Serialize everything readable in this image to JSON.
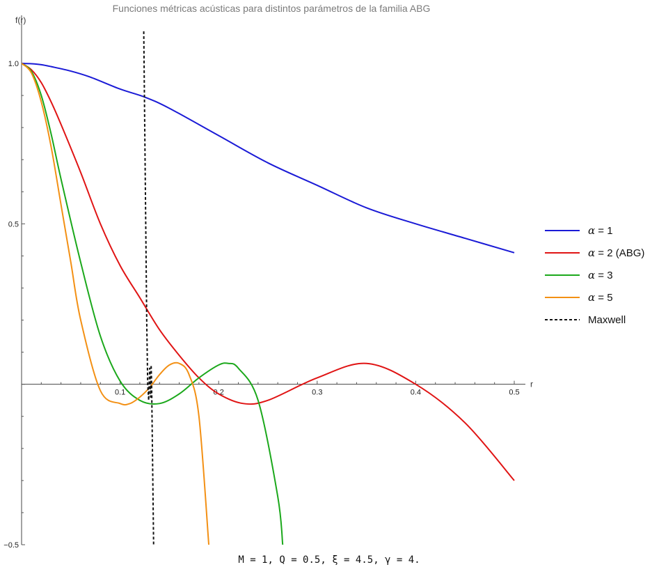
{
  "chart_data": {
    "type": "line",
    "title": "Funciones métricas acústicas para distintos parámetros de la familia ABG",
    "xlabel": "r",
    "ylabel": "f(r)",
    "xlim": [
      0,
      0.5
    ],
    "ylim": [
      -0.5,
      1.0
    ],
    "x_ticks": [
      "0.1",
      "0.2",
      "0.3",
      "0.4",
      "0.5"
    ],
    "y_ticks": [
      "1.0",
      "0.5",
      "-0.5"
    ],
    "grid": false,
    "legend_position": "right",
    "annotation": "M = 1, Q = 0.5, ξ = 4.5, γ = 4.",
    "series": [
      {
        "name": "α = 1",
        "greek": "α",
        "label_rest": " = 1",
        "color": "#1a1ad6",
        "dash": false,
        "x": [
          0,
          0.01,
          0.02,
          0.03,
          0.05,
          0.07,
          0.1,
          0.125,
          0.15,
          0.2,
          0.25,
          0.3,
          0.35,
          0.4,
          0.45,
          0.5
        ],
        "y": [
          1.0,
          0.999,
          0.996,
          0.99,
          0.976,
          0.957,
          0.92,
          0.895,
          0.86,
          0.775,
          0.69,
          0.62,
          0.55,
          0.5,
          0.455,
          0.41
        ]
      },
      {
        "name": "α = 2 (ABG)",
        "greek": "α",
        "label_rest": " = 2 (ABG)",
        "color": "#e01414",
        "dash": false,
        "x": [
          0,
          0.01,
          0.02,
          0.03,
          0.04,
          0.06,
          0.08,
          0.1,
          0.12,
          0.14,
          0.16,
          0.18,
          0.2,
          0.225,
          0.25,
          0.3,
          0.35,
          0.4,
          0.45,
          0.5
        ],
        "y": [
          1.0,
          0.98,
          0.94,
          0.88,
          0.81,
          0.66,
          0.5,
          0.37,
          0.27,
          0.17,
          0.09,
          0.02,
          -0.03,
          -0.06,
          -0.05,
          0.02,
          0.065,
          0.0,
          -0.12,
          -0.3
        ]
      },
      {
        "name": "α = 3",
        "greek": "α",
        "label_rest": " = 3",
        "color": "#1ba81b",
        "dash": false,
        "x": [
          0,
          0.01,
          0.02,
          0.03,
          0.04,
          0.06,
          0.08,
          0.1,
          0.12,
          0.14,
          0.16,
          0.18,
          0.2,
          0.21,
          0.22,
          0.24,
          0.26,
          0.265
        ],
        "y": [
          1.0,
          0.975,
          0.9,
          0.78,
          0.64,
          0.38,
          0.15,
          0.01,
          -0.05,
          -0.06,
          -0.03,
          0.02,
          0.06,
          0.065,
          0.05,
          -0.05,
          -0.35,
          -0.5
        ]
      },
      {
        "name": "α = 5",
        "greek": "α",
        "label_rest": " = 5",
        "color": "#f39014",
        "dash": false,
        "x": [
          0,
          0.01,
          0.02,
          0.03,
          0.04,
          0.05,
          0.06,
          0.08,
          0.1,
          0.11,
          0.12,
          0.13,
          0.14,
          0.15,
          0.16,
          0.17,
          0.18,
          0.19
        ],
        "y": [
          1.0,
          0.97,
          0.88,
          0.74,
          0.56,
          0.38,
          0.2,
          -0.02,
          -0.06,
          -0.06,
          -0.04,
          -0.01,
          0.03,
          0.06,
          0.065,
          0.03,
          -0.1,
          -0.5
        ]
      },
      {
        "name": "Maxwell",
        "greek": "",
        "label_rest": "Maxwell",
        "color": "#111111",
        "dash": true,
        "x": [
          0.124,
          0.126,
          0.127,
          0.128,
          0.129,
          0.13,
          0.131,
          0.1315,
          0.132,
          0.134
        ],
        "y": [
          1.1,
          0.5,
          0.2,
          0.0,
          -0.05,
          0.05,
          -0.04,
          0.06,
          0.0,
          -0.5
        ]
      }
    ]
  }
}
